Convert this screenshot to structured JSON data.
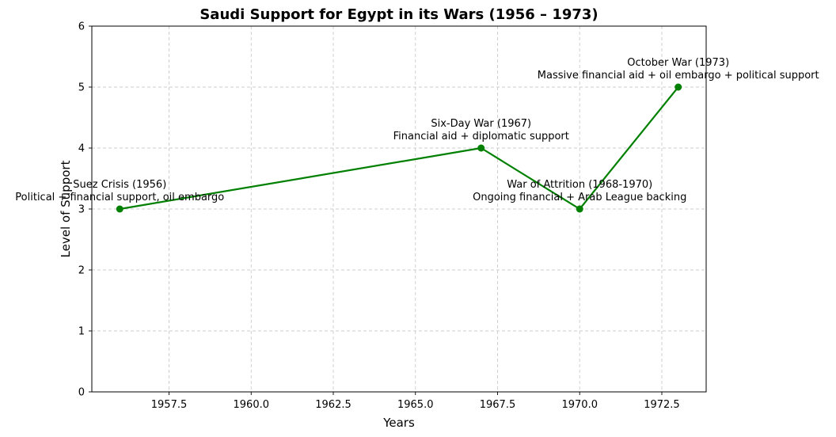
{
  "chart_data": {
    "type": "line",
    "title": "Saudi Support for Egypt in its Wars (1956 – 1973)",
    "xlabel": "Years",
    "ylabel": "Level of Support",
    "xlim": [
      1955.15,
      1973.85
    ],
    "ylim": [
      0,
      6
    ],
    "xticks": [
      "1957.5",
      "1960.0",
      "1962.5",
      "1965.0",
      "1967.5",
      "1970.0",
      "1972.5"
    ],
    "xtick_values": [
      1957.5,
      1960,
      1962.5,
      1965,
      1967.5,
      1970,
      1972.5
    ],
    "yticks": [
      "0",
      "1",
      "2",
      "3",
      "4",
      "5",
      "6"
    ],
    "ytick_values": [
      0,
      1,
      2,
      3,
      4,
      5,
      6
    ],
    "grid": true,
    "series": [
      {
        "color": "#008000",
        "x": [
          1956,
          1967,
          1970,
          1973
        ],
        "y": [
          3,
          4,
          3,
          5
        ]
      }
    ],
    "annotations": [
      {
        "x": 1956,
        "y": 3,
        "lines": [
          "Suez Crisis (1956)",
          "Political + financial support, oil embargo"
        ]
      },
      {
        "x": 1967,
        "y": 4,
        "lines": [
          "Six-Day War (1967)",
          "Financial aid + diplomatic support"
        ]
      },
      {
        "x": 1970,
        "y": 3,
        "lines": [
          "War of Attrition (1968-1970)",
          "Ongoing financial + Arab League backing"
        ]
      },
      {
        "x": 1973,
        "y": 5,
        "lines": [
          "October War (1973)",
          "Massive financial aid + oil embargo + political support"
        ]
      }
    ]
  }
}
